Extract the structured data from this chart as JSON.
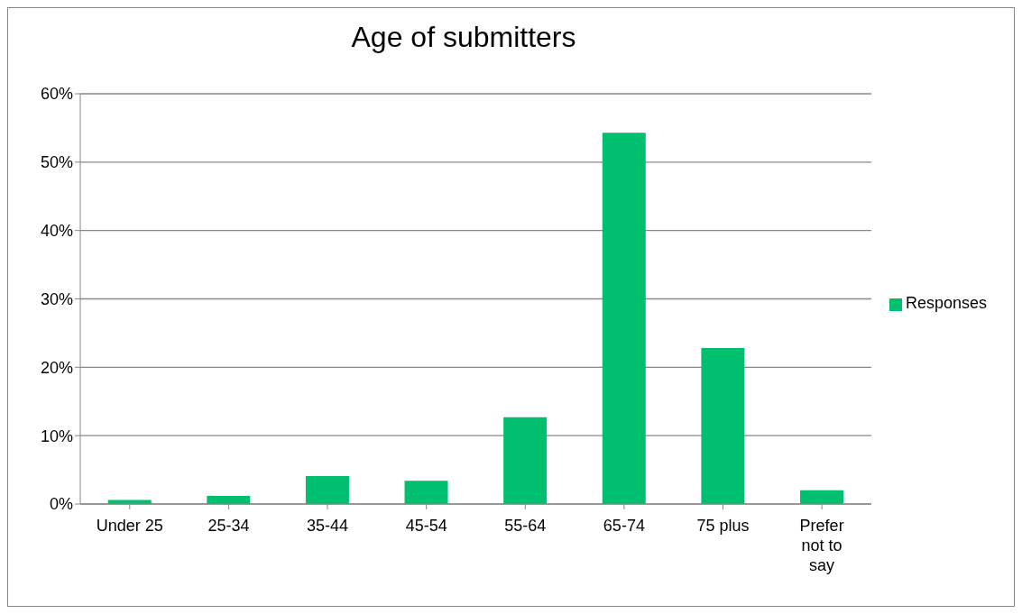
{
  "chart_data": {
    "type": "bar",
    "title": "Age of submitters",
    "categories": [
      "Under 25",
      "25-34",
      "35-44",
      "45-54",
      "55-64",
      "65-74",
      "75 plus",
      "Prefer not to say"
    ],
    "series": [
      {
        "name": "Responses",
        "color": "#00bf6f",
        "values": [
          0.6,
          1.2,
          4.1,
          3.4,
          12.7,
          54.3,
          22.8,
          2.0
        ]
      }
    ],
    "ylim": [
      0,
      60
    ],
    "yticks": [
      {
        "value": 0,
        "label": "0%"
      },
      {
        "value": 10,
        "label": "10%"
      },
      {
        "value": 20,
        "label": "20%"
      },
      {
        "value": 30,
        "label": "30%"
      },
      {
        "value": 40,
        "label": "40%"
      },
      {
        "value": 50,
        "label": "50%"
      },
      {
        "value": 60,
        "label": "60%"
      }
    ],
    "grid": "y",
    "legend": "right"
  }
}
